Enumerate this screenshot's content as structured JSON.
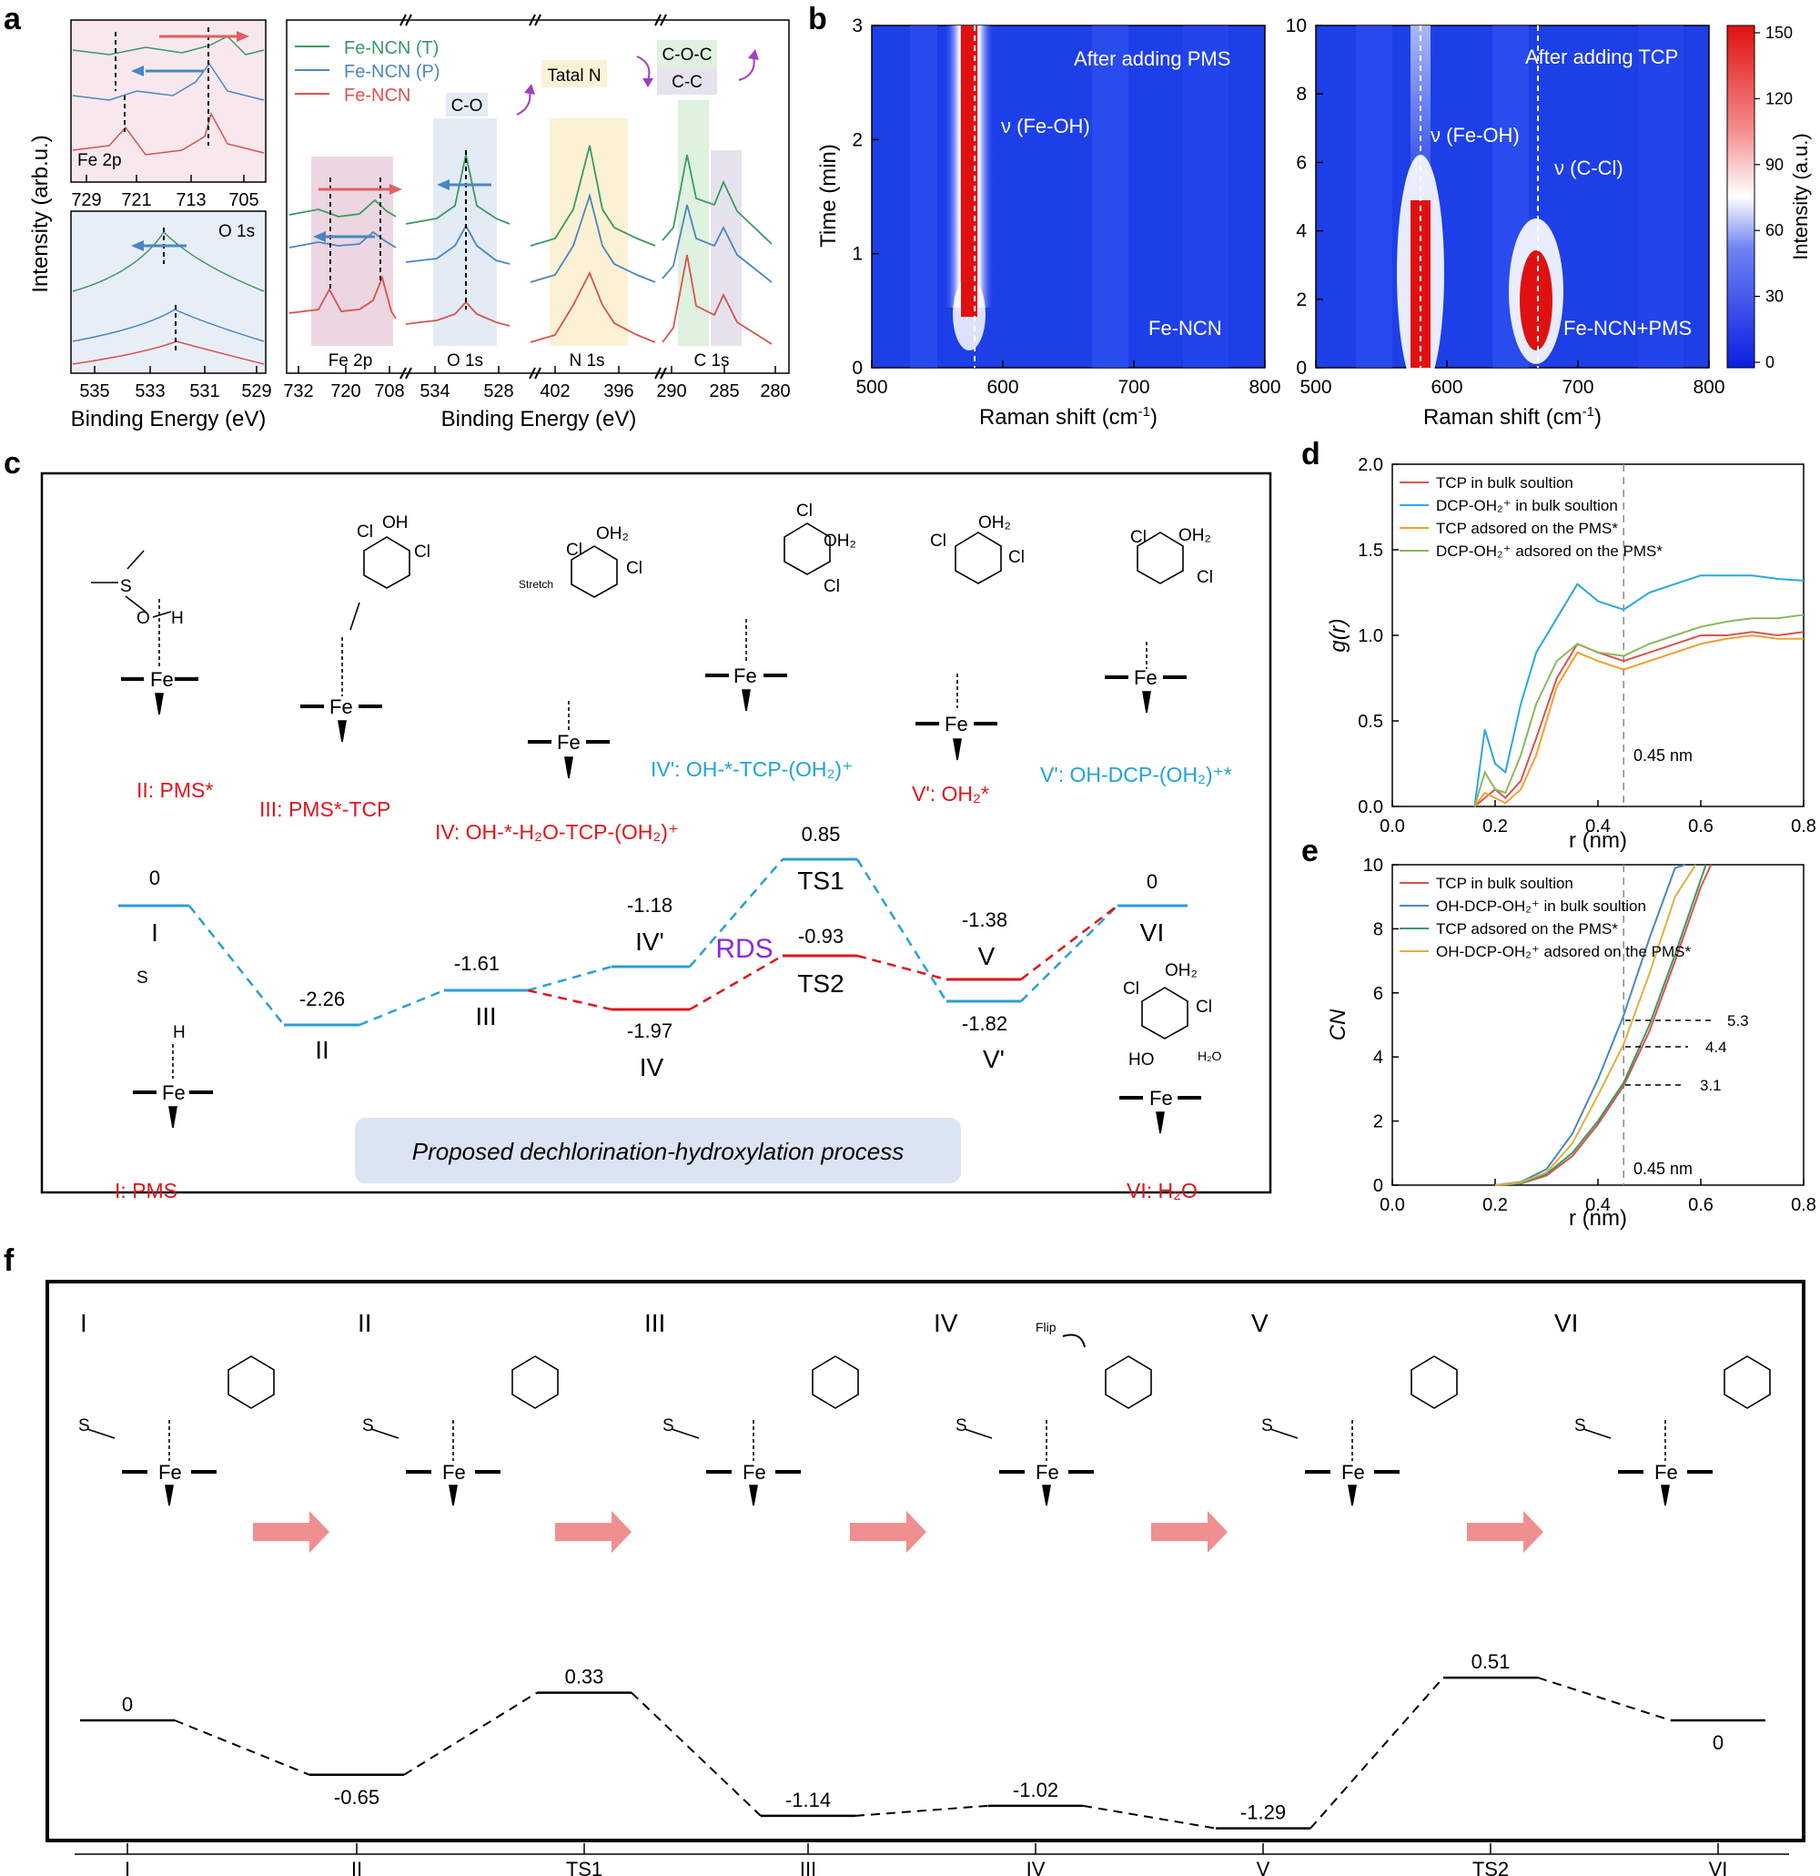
{
  "panels": {
    "a": {
      "letter": "a",
      "ylabel": "Intensity (arb.u.)",
      "xlabel_small": "Binding Energy (eV)",
      "xlabel_main": "Binding Energy (eV)",
      "fe2p_label": "Fe 2p",
      "o1s_label": "O 1s",
      "fe_ticks": [
        "729",
        "721",
        "713",
        "705"
      ],
      "o_ticks": [
        "535",
        "533",
        "531",
        "529"
      ],
      "main_ticks": [
        "732",
        "720",
        "708",
        "534",
        "528",
        "402",
        "396",
        "290",
        "285",
        "280"
      ],
      "legend": [
        "Fe-NCN (T)",
        "Fe-NCN (P)",
        "Fe-NCN"
      ],
      "band_labels": {
        "co": "C-O",
        "taltal": "Tatal N",
        "coc": "C-O-C",
        "cc": "C-C"
      },
      "region_labels": [
        "Fe 2p",
        "O 1s",
        "N 1s",
        "C 1s"
      ],
      "colors": {
        "T": "#3a9a63",
        "P": "#4a87c0",
        "N": "#d9534f"
      }
    },
    "b": {
      "letter": "b",
      "left": {
        "title": "After adding PMS",
        "sample": "Fe-NCN",
        "peak": "ν (Fe-OH)",
        "yticks": [
          "0",
          "1",
          "2",
          "3"
        ],
        "ylabel": "Time (min)"
      },
      "right": {
        "title": "After adding TCP",
        "sample": "Fe-NCN+PMS",
        "peak1": "ν (Fe-OH)",
        "peak2": "ν (C-Cl)",
        "yticks": [
          "0",
          "2",
          "4",
          "6",
          "8",
          "10"
        ]
      },
      "xticks": [
        "500",
        "600",
        "700",
        "800"
      ],
      "xlabel": "Raman shift (cm",
      "xlabel_sup": "-1",
      "xlabel_end": ")",
      "colorbar_ticks": [
        "0",
        "30",
        "60",
        "90",
        "120",
        "150"
      ],
      "colorbar_label": "Intensity (a.u.)"
    },
    "c": {
      "letter": "c",
      "species_labels": [
        "II: PMS*",
        "III: PMS*-TCP",
        "IV: OH-*-H₂O-TCP-(OH₂)⁺",
        "IV': OH-*-TCP-(OH₂)⁺",
        "V': OH₂*",
        "V': OH-DCP-(OH₂)⁺*",
        "I: PMS",
        "VI: H₂O"
      ],
      "levels": {
        "I": {
          "name": "I",
          "value": "0"
        },
        "II": {
          "name": "II",
          "value": "-2.26"
        },
        "III": {
          "name": "III",
          "value": "-1.61"
        },
        "IVp": {
          "name": "IV'",
          "value": "-1.18"
        },
        "IV": {
          "name": "IV",
          "value": "-1.97"
        },
        "TS1": {
          "name": "TS1",
          "value": "0.85"
        },
        "TS2": {
          "name": "TS2",
          "value": "-0.93"
        },
        "V": {
          "name": "V",
          "value": "-1.38"
        },
        "Vp": {
          "name": "V'",
          "value": "-1.82"
        },
        "VI": {
          "name": "VI",
          "value": "0"
        }
      },
      "rds": "RDS",
      "banner": "Proposed dechlorination-hydroxylation process",
      "stretch": "Stretch"
    },
    "d": {
      "letter": "d",
      "ylabel": "g(r)",
      "xlabel": "r (nm)",
      "marker": "0.45 nm"
    },
    "e": {
      "letter": "e",
      "ylabel": "CN",
      "xlabel": "r (nm)",
      "marker": "0.45 nm",
      "cn_values": [
        "5.3",
        "4.4",
        "3.1"
      ]
    },
    "f": {
      "letter": "f",
      "states": [
        "I",
        "II",
        "III",
        "IV",
        "V",
        "VI"
      ],
      "flip": "Flip",
      "levels": [
        "0",
        "-0.65",
        "0.33",
        "-1.14",
        "-1.02",
        "-1.29",
        "0.51",
        "0"
      ],
      "axis_labels": [
        "I",
        "II",
        "TS1",
        "III",
        "IV",
        "V",
        "TS2",
        "VI"
      ]
    }
  },
  "chart_data": [
    {
      "type": "line",
      "panel": "d",
      "xlabel": "r (nm)",
      "ylabel": "g(r)",
      "xlim": [
        0,
        0.8
      ],
      "ylim": [
        0,
        2.0
      ],
      "xticks": [
        0.0,
        0.2,
        0.4,
        0.6,
        0.8
      ],
      "yticks": [
        0.0,
        0.5,
        1.0,
        1.5,
        2.0
      ],
      "legend_position": "top-left",
      "series": [
        {
          "name": "TCP in bulk soultion",
          "color": "#d9534f",
          "x": [
            0.16,
            0.18,
            0.2,
            0.22,
            0.25,
            0.28,
            0.32,
            0.36,
            0.4,
            0.45,
            0.5,
            0.55,
            0.6,
            0.65,
            0.7,
            0.75,
            0.8
          ],
          "y": [
            0,
            0.05,
            0.1,
            0.05,
            0.15,
            0.4,
            0.75,
            0.95,
            0.9,
            0.85,
            0.9,
            0.95,
            1.0,
            1.0,
            1.02,
            1.0,
            1.02
          ]
        },
        {
          "name": "DCP-OH₂⁺ in bulk soultion",
          "color": "#2aa7de",
          "x": [
            0.16,
            0.18,
            0.2,
            0.22,
            0.25,
            0.28,
            0.32,
            0.36,
            0.4,
            0.45,
            0.5,
            0.55,
            0.6,
            0.65,
            0.7,
            0.75,
            0.8
          ],
          "y": [
            0,
            0.45,
            0.25,
            0.2,
            0.6,
            0.9,
            1.1,
            1.3,
            1.2,
            1.15,
            1.25,
            1.3,
            1.35,
            1.35,
            1.35,
            1.33,
            1.32
          ]
        },
        {
          "name": "TCP adsored on the PMS*",
          "color": "#f0a030",
          "x": [
            0.16,
            0.18,
            0.2,
            0.22,
            0.25,
            0.28,
            0.32,
            0.36,
            0.4,
            0.45,
            0.5,
            0.55,
            0.6,
            0.65,
            0.7,
            0.75,
            0.8
          ],
          "y": [
            0,
            0.08,
            0.05,
            0.02,
            0.1,
            0.3,
            0.7,
            0.9,
            0.85,
            0.8,
            0.85,
            0.9,
            0.95,
            0.98,
            1.0,
            0.98,
            0.98
          ]
        },
        {
          "name": "DCP-OH₂⁺ adsored on the PMS*",
          "color": "#8ab85a",
          "x": [
            0.16,
            0.18,
            0.2,
            0.22,
            0.25,
            0.28,
            0.32,
            0.36,
            0.4,
            0.45,
            0.5,
            0.55,
            0.6,
            0.65,
            0.7,
            0.75,
            0.8
          ],
          "y": [
            0,
            0.2,
            0.1,
            0.08,
            0.3,
            0.6,
            0.85,
            0.95,
            0.9,
            0.88,
            0.95,
            1.0,
            1.05,
            1.08,
            1.1,
            1.1,
            1.12
          ]
        }
      ]
    },
    {
      "type": "line",
      "panel": "e",
      "xlabel": "r (nm)",
      "ylabel": "CN",
      "xlim": [
        0,
        0.8
      ],
      "ylim": [
        0,
        10
      ],
      "xticks": [
        0.0,
        0.2,
        0.4,
        0.6,
        0.8
      ],
      "yticks": [
        0,
        2,
        4,
        6,
        8,
        10
      ],
      "legend_position": "top-left",
      "series": [
        {
          "name": "TCP in bulk soultion",
          "color": "#d9534f",
          "x": [
            0.2,
            0.25,
            0.3,
            0.35,
            0.4,
            0.45,
            0.5,
            0.55,
            0.6,
            0.62
          ],
          "y": [
            0,
            0.05,
            0.3,
            0.9,
            1.9,
            3.1,
            4.8,
            7.0,
            9.3,
            10
          ]
        },
        {
          "name": "OH-DCP-OH₂⁺ in bulk soultion",
          "color": "#4a87c0",
          "x": [
            0.2,
            0.25,
            0.3,
            0.35,
            0.4,
            0.45,
            0.5,
            0.55,
            0.57
          ],
          "y": [
            0,
            0.1,
            0.5,
            1.6,
            3.3,
            5.3,
            7.7,
            9.9,
            10
          ]
        },
        {
          "name": "TCP adsored on the PMS*",
          "color": "#3a9a63",
          "x": [
            0.2,
            0.25,
            0.3,
            0.35,
            0.4,
            0.45,
            0.5,
            0.55,
            0.61
          ],
          "y": [
            0,
            0.05,
            0.35,
            1.0,
            2.0,
            3.2,
            5.0,
            7.2,
            10
          ]
        },
        {
          "name": "OH-DCP-OH₂⁺ adsored on the PMS*",
          "color": "#e0b040",
          "x": [
            0.2,
            0.25,
            0.3,
            0.35,
            0.4,
            0.45,
            0.5,
            0.55,
            0.59
          ],
          "y": [
            0,
            0.08,
            0.4,
            1.3,
            2.8,
            4.4,
            6.6,
            9.0,
            10
          ]
        }
      ]
    },
    {
      "type": "line",
      "panel": "c-energy-profile",
      "xlabel": "",
      "ylabel": "",
      "categories": [
        "I",
        "II",
        "III",
        "IV'",
        "IV",
        "TS1",
        "TS2",
        "V",
        "V'",
        "VI"
      ],
      "values": [
        0,
        -2.26,
        -1.61,
        -1.18,
        -1.97,
        0.85,
        -0.93,
        -1.38,
        -1.82,
        0
      ]
    },
    {
      "type": "line",
      "panel": "f-energy-profile",
      "xlabel": "",
      "ylabel": "",
      "categories": [
        "I",
        "II",
        "TS1",
        "III",
        "IV",
        "V",
        "TS2",
        "VI"
      ],
      "values": [
        0,
        -0.65,
        0.33,
        -1.14,
        -1.02,
        -1.29,
        0.51,
        0
      ]
    }
  ]
}
